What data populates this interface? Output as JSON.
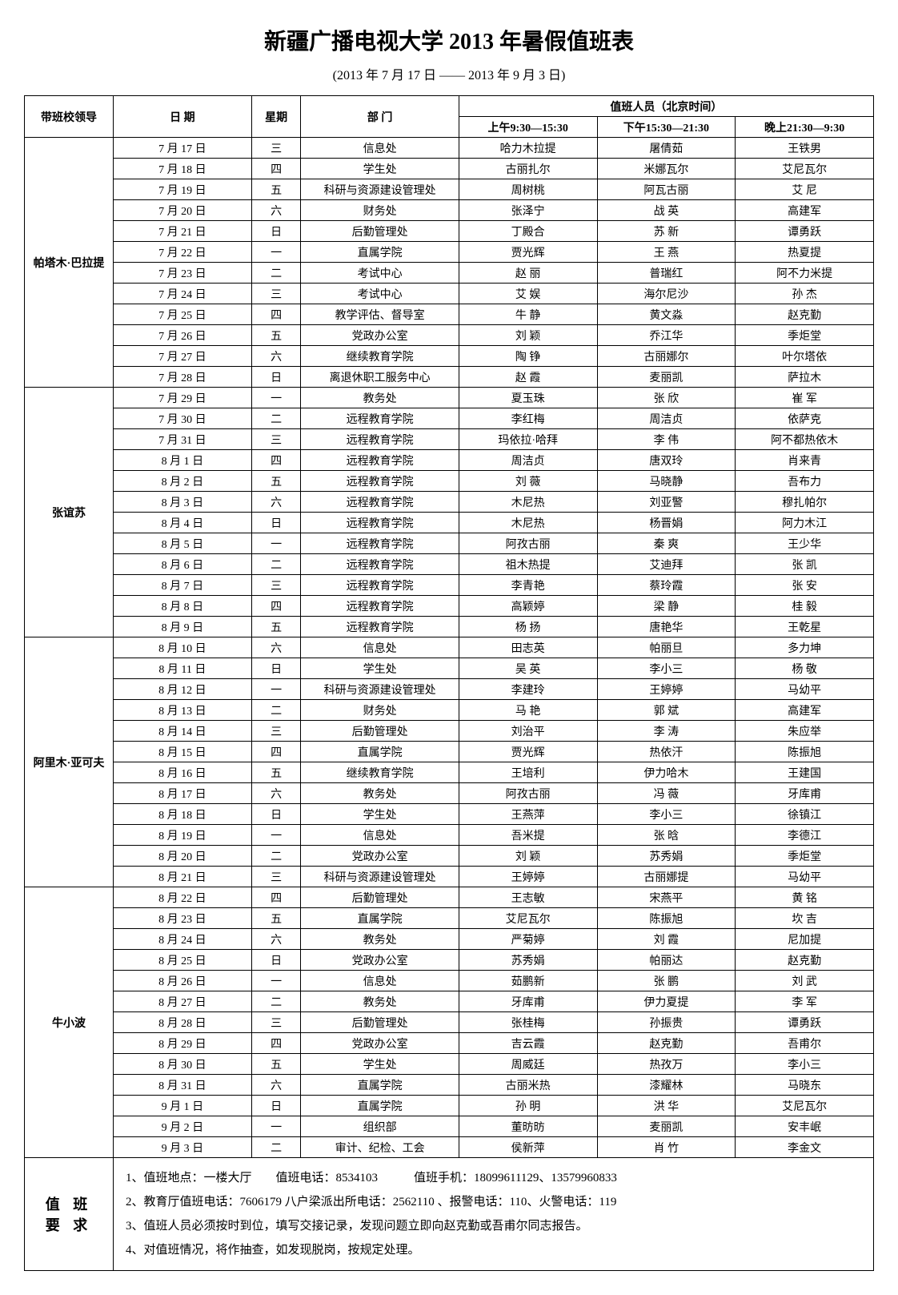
{
  "title": "新疆广播电视大学 2013 年暑假值班表",
  "subtitle": "(2013 年 7 月 17 日 —— 2013 年 9 月 3 日)",
  "headers": {
    "leader": "带班校领导",
    "date": "日  期",
    "weekday": "星期",
    "department": "部  门",
    "onDutyGroup": "值班人员（北京时间）",
    "morning": "上午9:30—15:30",
    "afternoon": "下午15:30—21:30",
    "evening": "晚上21:30—9:30"
  },
  "groups": [
    {
      "leader": "帕塔木·巴拉提",
      "rows": [
        {
          "date": "7 月 17 日",
          "weekday": "三",
          "dept": "信息处",
          "p1": "哈力木拉提",
          "p2": "屠倩茹",
          "p3": "王铁男"
        },
        {
          "date": "7 月 18 日",
          "weekday": "四",
          "dept": "学生处",
          "p1": "古丽扎尔",
          "p2": "米娜瓦尔",
          "p3": "艾尼瓦尔"
        },
        {
          "date": "7 月 19 日",
          "weekday": "五",
          "dept": "科研与资源建设管理处",
          "p1": "周树桃",
          "p2": "阿瓦古丽",
          "p3": "艾 尼"
        },
        {
          "date": "7 月 20 日",
          "weekday": "六",
          "dept": "财务处",
          "p1": "张泽宁",
          "p2": "战 英",
          "p3": "高建军"
        },
        {
          "date": "7 月 21 日",
          "weekday": "日",
          "dept": "后勤管理处",
          "p1": "丁殿合",
          "p2": "苏 新",
          "p3": "谭勇跃"
        },
        {
          "date": "7 月 22 日",
          "weekday": "一",
          "dept": "直属学院",
          "p1": "贾光辉",
          "p2": "王 燕",
          "p3": "热夏提"
        },
        {
          "date": "7 月 23 日",
          "weekday": "二",
          "dept": "考试中心",
          "p1": "赵 丽",
          "p2": "普瑞红",
          "p3": "阿不力米提"
        },
        {
          "date": "7 月 24 日",
          "weekday": "三",
          "dept": "考试中心",
          "p1": "艾 娱",
          "p2": "海尔尼沙",
          "p3": "孙 杰"
        },
        {
          "date": "7 月 25 日",
          "weekday": "四",
          "dept": "教学评估、督导室",
          "p1": "牛 静",
          "p2": "黄文淼",
          "p3": "赵克勤"
        },
        {
          "date": "7 月 26 日",
          "weekday": "五",
          "dept": "党政办公室",
          "p1": "刘 颖",
          "p2": "乔江华",
          "p3": "季炬堂"
        },
        {
          "date": "7 月 27 日",
          "weekday": "六",
          "dept": "继续教育学院",
          "p1": "陶 铮",
          "p2": "古丽娜尔",
          "p3": "叶尔塔依"
        },
        {
          "date": "7 月 28 日",
          "weekday": "日",
          "dept": "离退休职工服务中心",
          "p1": "赵 霞",
          "p2": "麦丽凯",
          "p3": "萨拉木"
        }
      ]
    },
    {
      "leader": "张谊苏",
      "rows": [
        {
          "date": "7 月 29 日",
          "weekday": "一",
          "dept": "教务处",
          "p1": "夏玉珠",
          "p2": "张 欣",
          "p3": "崔 军"
        },
        {
          "date": "7 月 30 日",
          "weekday": "二",
          "dept": "远程教育学院",
          "p1": "李红梅",
          "p2": "周洁贞",
          "p3": "依萨克"
        },
        {
          "date": "7 月 31 日",
          "weekday": "三",
          "dept": "远程教育学院",
          "p1": "玛依拉·哈拜",
          "p2": "李 伟",
          "p3": "阿不都热依木"
        },
        {
          "date": "8 月 1 日",
          "weekday": "四",
          "dept": "远程教育学院",
          "p1": "周洁贞",
          "p2": "唐双玲",
          "p3": "肖来青"
        },
        {
          "date": "8 月 2 日",
          "weekday": "五",
          "dept": "远程教育学院",
          "p1": "刘 薇",
          "p2": "马晓静",
          "p3": "吾布力"
        },
        {
          "date": "8 月 3 日",
          "weekday": "六",
          "dept": "远程教育学院",
          "p1": "木尼热",
          "p2": "刘亚警",
          "p3": "穆扎帕尔"
        },
        {
          "date": "8 月 4 日",
          "weekday": "日",
          "dept": "远程教育学院",
          "p1": "木尼热",
          "p2": "杨晋娟",
          "p3": "阿力木江"
        },
        {
          "date": "8 月 5 日",
          "weekday": "一",
          "dept": "远程教育学院",
          "p1": "阿孜古丽",
          "p2": "秦 爽",
          "p3": "王少华"
        },
        {
          "date": "8 月 6 日",
          "weekday": "二",
          "dept": "远程教育学院",
          "p1": "祖木热提",
          "p2": "艾迪拜",
          "p3": "张 凯"
        },
        {
          "date": "8 月 7 日",
          "weekday": "三",
          "dept": "远程教育学院",
          "p1": "李青艳",
          "p2": "蔡玲霞",
          "p3": "张 安"
        },
        {
          "date": "8 月 8 日",
          "weekday": "四",
          "dept": "远程教育学院",
          "p1": "高颖婷",
          "p2": "梁 静",
          "p3": "桂 毅"
        },
        {
          "date": "8 月 9 日",
          "weekday": "五",
          "dept": "远程教育学院",
          "p1": "杨 扬",
          "p2": "唐艳华",
          "p3": "王乾星"
        }
      ]
    },
    {
      "leader": "阿里木·亚可夫",
      "rows": [
        {
          "date": "8 月 10 日",
          "weekday": "六",
          "dept": "信息处",
          "p1": "田志英",
          "p2": "帕丽旦",
          "p3": "多力坤"
        },
        {
          "date": "8 月 11 日",
          "weekday": "日",
          "dept": "学生处",
          "p1": "吴 英",
          "p2": "李小三",
          "p3": "杨 敬"
        },
        {
          "date": "8 月 12 日",
          "weekday": "一",
          "dept": "科研与资源建设管理处",
          "p1": "李建玲",
          "p2": "王婷婷",
          "p3": "马幼平"
        },
        {
          "date": "8 月 13 日",
          "weekday": "二",
          "dept": "财务处",
          "p1": "马 艳",
          "p2": "郭 斌",
          "p3": "高建军"
        },
        {
          "date": "8 月 14 日",
          "weekday": "三",
          "dept": "后勤管理处",
          "p1": "刘治平",
          "p2": "李 涛",
          "p3": "朱应举"
        },
        {
          "date": "8 月 15 日",
          "weekday": "四",
          "dept": "直属学院",
          "p1": "贾光辉",
          "p2": "热依汗",
          "p3": "陈振旭"
        },
        {
          "date": "8 月 16 日",
          "weekday": "五",
          "dept": "继续教育学院",
          "p1": "王培利",
          "p2": "伊力哈木",
          "p3": "王建国"
        },
        {
          "date": "8 月 17 日",
          "weekday": "六",
          "dept": "教务处",
          "p1": "阿孜古丽",
          "p2": "冯 薇",
          "p3": "牙库甫"
        },
        {
          "date": "8 月 18 日",
          "weekday": "日",
          "dept": "学生处",
          "p1": "王燕萍",
          "p2": "李小三",
          "p3": "徐镇江"
        },
        {
          "date": "8 月 19 日",
          "weekday": "一",
          "dept": "信息处",
          "p1": "吾米提",
          "p2": "张 晗",
          "p3": "李德江"
        },
        {
          "date": "8 月 20 日",
          "weekday": "二",
          "dept": "党政办公室",
          "p1": "刘 颖",
          "p2": "苏秀娟",
          "p3": "季炬堂"
        },
        {
          "date": "8 月 21 日",
          "weekday": "三",
          "dept": "科研与资源建设管理处",
          "p1": "王婷婷",
          "p2": "古丽娜提",
          "p3": "马幼平"
        }
      ]
    },
    {
      "leader": "牛小波",
      "rows": [
        {
          "date": "8 月 22 日",
          "weekday": "四",
          "dept": "后勤管理处",
          "p1": "王志敏",
          "p2": "宋燕平",
          "p3": "黄 铭"
        },
        {
          "date": "8 月 23 日",
          "weekday": "五",
          "dept": "直属学院",
          "p1": "艾尼瓦尔",
          "p2": "陈振旭",
          "p3": "坎 吉"
        },
        {
          "date": "8 月 24 日",
          "weekday": "六",
          "dept": "教务处",
          "p1": "严菊婷",
          "p2": "刘 霞",
          "p3": "尼加提"
        },
        {
          "date": "8 月 25 日",
          "weekday": "日",
          "dept": "党政办公室",
          "p1": "苏秀娟",
          "p2": "帕丽达",
          "p3": "赵克勤"
        },
        {
          "date": "8 月 26 日",
          "weekday": "一",
          "dept": "信息处",
          "p1": "茹鹏新",
          "p2": "张 鹏",
          "p3": "刘 武"
        },
        {
          "date": "8 月 27 日",
          "weekday": "二",
          "dept": "教务处",
          "p1": "牙库甫",
          "p2": "伊力夏提",
          "p3": "李 军"
        },
        {
          "date": "8 月 28 日",
          "weekday": "三",
          "dept": "后勤管理处",
          "p1": "张桂梅",
          "p2": "孙振贵",
          "p3": "谭勇跃"
        },
        {
          "date": "8 月 29 日",
          "weekday": "四",
          "dept": "党政办公室",
          "p1": "吉云霞",
          "p2": "赵克勤",
          "p3": "吾甫尔"
        },
        {
          "date": "8 月 30 日",
          "weekday": "五",
          "dept": "学生处",
          "p1": "周威廷",
          "p2": "热孜万",
          "p3": "李小三"
        },
        {
          "date": "8 月 31 日",
          "weekday": "六",
          "dept": "直属学院",
          "p1": "古丽米热",
          "p2": "漆耀林",
          "p3": "马晓东"
        },
        {
          "date": "9 月 1 日",
          "weekday": "日",
          "dept": "直属学院",
          "p1": "孙 明",
          "p2": "洪 华",
          "p3": "艾尼瓦尔"
        },
        {
          "date": "9 月 2 日",
          "weekday": "一",
          "dept": "组织部",
          "p1": "董昉昉",
          "p2": "麦丽凯",
          "p3": "安丰岷"
        },
        {
          "date": "9 月 3 日",
          "weekday": "二",
          "dept": "审计、纪检、工会",
          "p1": "侯新萍",
          "p2": "肖 竹",
          "p3": "李金文"
        }
      ]
    }
  ],
  "notes": {
    "label": "值  班\n要  求",
    "lines": [
      "1、值班地点：一楼大厅　　值班电话：8534103　　　值班手机：18099611129、13579960833",
      "2、教育厅值班电话：7606179 八户梁派出所电话：2562110 、报警电话：110、火警电话：119",
      "3、值班人员必须按时到位，填写交接记录，发现问题立即向赵克勤或吾甫尔同志报告。",
      "4、对值班情况，将作抽查，如发现脱岗，按规定处理。"
    ]
  }
}
